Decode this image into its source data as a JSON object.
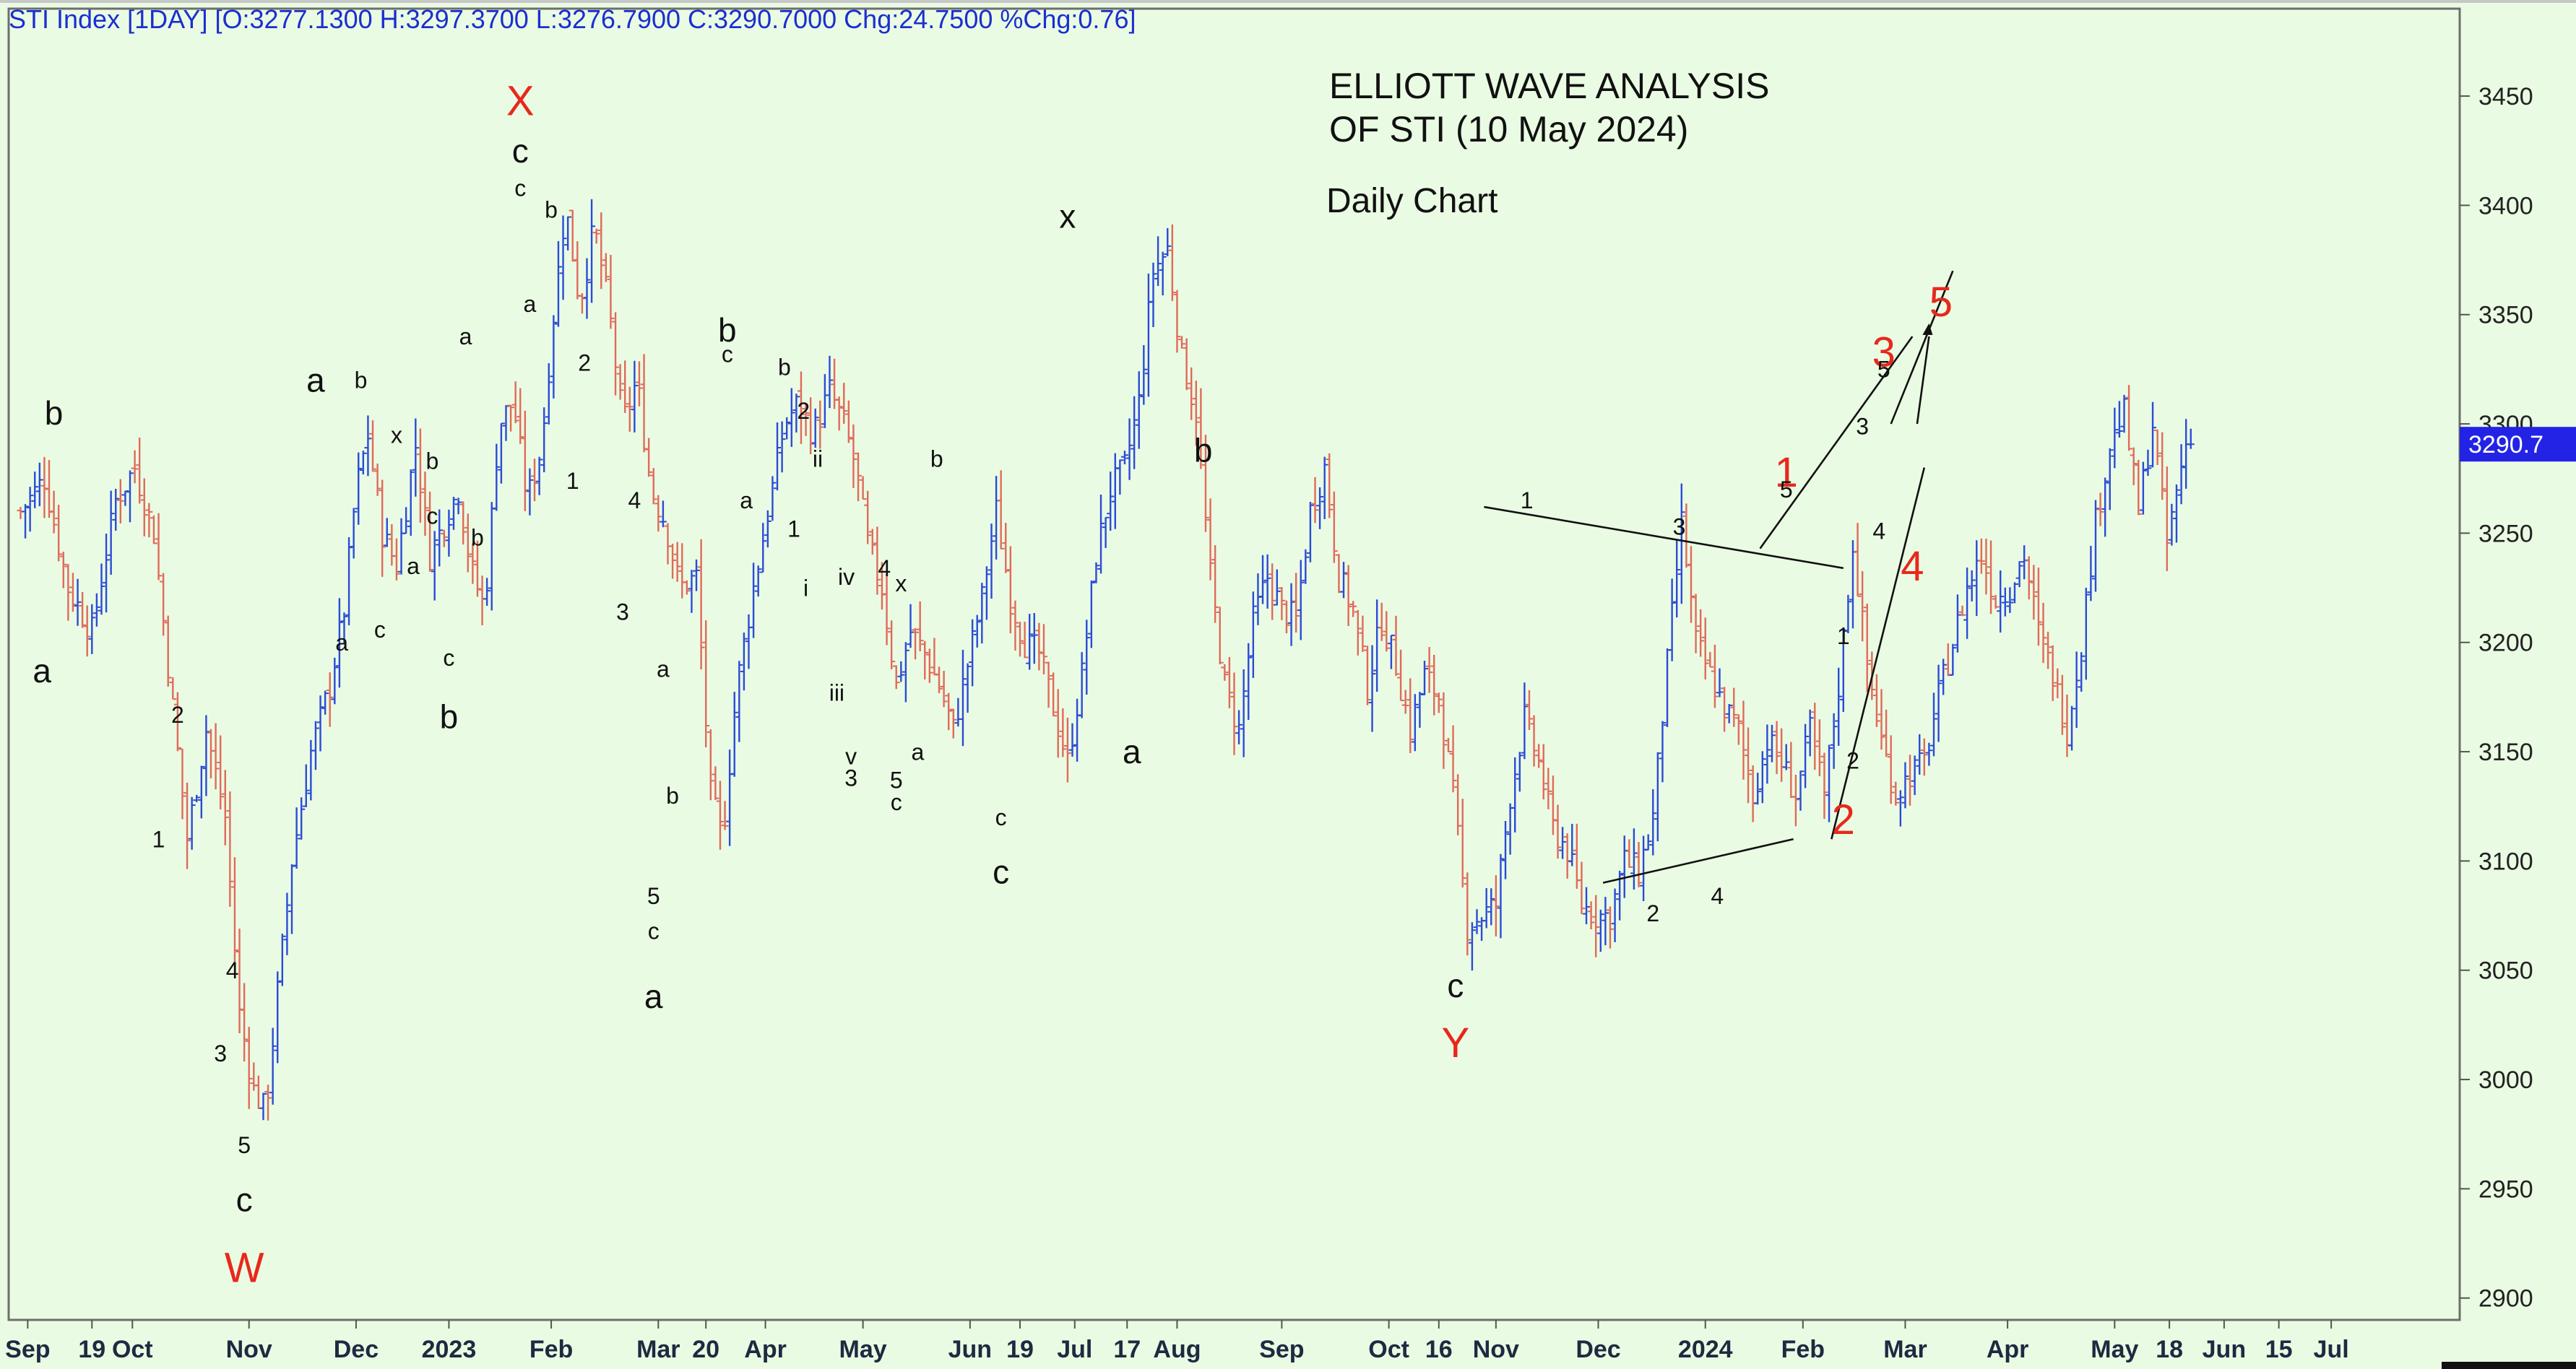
{
  "chart_data": {
    "type": "ohlc",
    "header": "STI Index [1DAY] [O:3277.1300 H:3297.3700 L:3276.7900 C:3290.7000 Chg:24.7500 %Chg:0.76]",
    "title": "ELLIOTT WAVE ANALYSIS",
    "title2": "OF STI (10 May 2024)",
    "subtitle": "Daily Chart",
    "last_price_label": "3290.7",
    "last_price": 3290.7,
    "ylim": [
      2890,
      3490
    ],
    "y_ticks": [
      2900,
      2950,
      3000,
      3050,
      3100,
      3150,
      3200,
      3250,
      3300,
      3350,
      3400,
      3450
    ],
    "x_labels": [
      {
        "t": 0.3,
        "text": "Sep"
      },
      {
        "t": 3.0,
        "text": "19"
      },
      {
        "t": 4.7,
        "text": "Oct"
      },
      {
        "t": 9.6,
        "text": "Nov"
      },
      {
        "t": 14.1,
        "text": "Dec"
      },
      {
        "t": 18.0,
        "text": "2023"
      },
      {
        "t": 22.3,
        "text": "Feb"
      },
      {
        "t": 26.8,
        "text": "Mar"
      },
      {
        "t": 28.8,
        "text": "20"
      },
      {
        "t": 31.3,
        "text": "Apr"
      },
      {
        "t": 35.4,
        "text": "May"
      },
      {
        "t": 39.9,
        "text": "Jun"
      },
      {
        "t": 42.0,
        "text": "19"
      },
      {
        "t": 44.3,
        "text": "Jul"
      },
      {
        "t": 46.5,
        "text": "17"
      },
      {
        "t": 48.6,
        "text": "Aug"
      },
      {
        "t": 53.0,
        "text": "Sep"
      },
      {
        "t": 57.5,
        "text": "Oct"
      },
      {
        "t": 59.6,
        "text": "16"
      },
      {
        "t": 62.0,
        "text": "Nov"
      },
      {
        "t": 66.3,
        "text": "Dec"
      },
      {
        "t": 70.8,
        "text": "2024"
      },
      {
        "t": 74.9,
        "text": "Feb"
      },
      {
        "t": 79.2,
        "text": "Mar"
      },
      {
        "t": 83.5,
        "text": "Apr"
      },
      {
        "t": 88.0,
        "text": "May"
      },
      {
        "t": 90.3,
        "text": "18"
      },
      {
        "t": 92.6,
        "text": "Jun"
      },
      {
        "t": 94.9,
        "text": "15"
      },
      {
        "t": 97.1,
        "text": "Jul"
      }
    ],
    "t_range": [
      -0.5,
      102.5
    ],
    "price_path": [
      [
        0,
        3260
      ],
      [
        1,
        3275
      ],
      [
        2,
        3225
      ],
      [
        3,
        3205
      ],
      [
        4,
        3265
      ],
      [
        4.8,
        3280
      ],
      [
        5.6,
        3250
      ],
      [
        6.3,
        3180
      ],
      [
        7.0,
        3110
      ],
      [
        7.8,
        3160
      ],
      [
        8.6,
        3120
      ],
      [
        9.2,
        3030
      ],
      [
        9.8,
        2995
      ],
      [
        10.3,
        2985
      ],
      [
        10.8,
        3040
      ],
      [
        11.4,
        3100
      ],
      [
        12.2,
        3150
      ],
      [
        13.0,
        3180
      ],
      [
        13.6,
        3215
      ],
      [
        14.1,
        3270
      ],
      [
        14.6,
        3295
      ],
      [
        15.2,
        3250
      ],
      [
        15.8,
        3235
      ],
      [
        16.6,
        3290
      ],
      [
        17.2,
        3240
      ],
      [
        17.8,
        3255
      ],
      [
        18.4,
        3270
      ],
      [
        18.9,
        3235
      ],
      [
        19.5,
        3215
      ],
      [
        20.1,
        3300
      ],
      [
        20.7,
        3310
      ],
      [
        21.3,
        3265
      ],
      [
        21.9,
        3290
      ],
      [
        22.4,
        3350
      ],
      [
        22.9,
        3400
      ],
      [
        23.5,
        3355
      ],
      [
        24.1,
        3390
      ],
      [
        24.7,
        3355
      ],
      [
        25.3,
        3300
      ],
      [
        25.9,
        3320
      ],
      [
        26.5,
        3270
      ],
      [
        27.1,
        3255
      ],
      [
        27.7,
        3225
      ],
      [
        28.4,
        3230
      ],
      [
        29.0,
        3130
      ],
      [
        29.5,
        3110
      ],
      [
        30.1,
        3180
      ],
      [
        30.8,
        3225
      ],
      [
        31.5,
        3265
      ],
      [
        32.1,
        3300
      ],
      [
        32.7,
        3310
      ],
      [
        33.3,
        3295
      ],
      [
        34.0,
        3315
      ],
      [
        34.6,
        3300
      ],
      [
        35.1,
        3280
      ],
      [
        35.6,
        3245
      ],
      [
        36.2,
        3225
      ],
      [
        36.8,
        3180
      ],
      [
        37.4,
        3205
      ],
      [
        38.0,
        3195
      ],
      [
        38.6,
        3180
      ],
      [
        39.2,
        3160
      ],
      [
        39.8,
        3190
      ],
      [
        40.4,
        3220
      ],
      [
        41.0,
        3260
      ],
      [
        41.6,
        3220
      ],
      [
        42.2,
        3200
      ],
      [
        42.8,
        3195
      ],
      [
        43.4,
        3170
      ],
      [
        44.0,
        3145
      ],
      [
        44.6,
        3185
      ],
      [
        45.2,
        3240
      ],
      [
        45.8,
        3270
      ],
      [
        46.4,
        3280
      ],
      [
        47.0,
        3310
      ],
      [
        47.6,
        3370
      ],
      [
        48.2,
        3380
      ],
      [
        48.8,
        3330
      ],
      [
        49.4,
        3305
      ],
      [
        50.0,
        3230
      ],
      [
        50.6,
        3180
      ],
      [
        51.2,
        3160
      ],
      [
        51.8,
        3210
      ],
      [
        52.4,
        3230
      ],
      [
        53.0,
        3215
      ],
      [
        53.6,
        3210
      ],
      [
        54.2,
        3260
      ],
      [
        54.8,
        3280
      ],
      [
        55.4,
        3230
      ],
      [
        56.0,
        3215
      ],
      [
        56.6,
        3180
      ],
      [
        57.2,
        3210
      ],
      [
        57.8,
        3190
      ],
      [
        58.4,
        3160
      ],
      [
        59.0,
        3185
      ],
      [
        59.6,
        3175
      ],
      [
        60.2,
        3130
      ],
      [
        60.8,
        3070
      ],
      [
        61.4,
        3075
      ],
      [
        62.0,
        3080
      ],
      [
        62.6,
        3130
      ],
      [
        63.2,
        3165
      ],
      [
        63.8,
        3145
      ],
      [
        64.4,
        3115
      ],
      [
        65.0,
        3105
      ],
      [
        65.6,
        3080
      ],
      [
        66.2,
        3075
      ],
      [
        66.8,
        3075
      ],
      [
        67.4,
        3100
      ],
      [
        68.0,
        3095
      ],
      [
        68.6,
        3120
      ],
      [
        69.2,
        3190
      ],
      [
        69.8,
        3255
      ],
      [
        70.4,
        3200
      ],
      [
        71.0,
        3185
      ],
      [
        71.6,
        3170
      ],
      [
        72.2,
        3160
      ],
      [
        72.8,
        3130
      ],
      [
        73.4,
        3155
      ],
      [
        74.0,
        3145
      ],
      [
        74.6,
        3130
      ],
      [
        75.2,
        3160
      ],
      [
        75.8,
        3130
      ],
      [
        76.4,
        3180
      ],
      [
        77.0,
        3245
      ],
      [
        77.6,
        3190
      ],
      [
        78.2,
        3155
      ],
      [
        78.8,
        3130
      ],
      [
        79.4,
        3140
      ],
      [
        80.0,
        3145
      ],
      [
        80.6,
        3175
      ],
      [
        81.2,
        3200
      ],
      [
        81.8,
        3225
      ],
      [
        82.4,
        3240
      ],
      [
        83.0,
        3220
      ],
      [
        83.6,
        3225
      ],
      [
        84.2,
        3240
      ],
      [
        84.8,
        3205
      ],
      [
        85.4,
        3185
      ],
      [
        86.0,
        3160
      ],
      [
        86.6,
        3200
      ],
      [
        87.2,
        3255
      ],
      [
        87.8,
        3290
      ],
      [
        88.4,
        3305
      ],
      [
        89.0,
        3260
      ],
      [
        89.6,
        3300
      ],
      [
        90.2,
        3245
      ],
      [
        90.8,
        3280
      ],
      [
        91.2,
        3290.7
      ]
    ],
    "wave_labels": [
      {
        "t": 0.9,
        "y": 3187,
        "text": "a",
        "color": "black",
        "size": "L"
      },
      {
        "t": 1.4,
        "y": 3305,
        "text": "b",
        "color": "black",
        "size": "L"
      },
      {
        "t": 6.6,
        "y": 3167,
        "text": "2",
        "color": "black",
        "size": "S"
      },
      {
        "t": 5.8,
        "y": 3110,
        "text": "1",
        "color": "black",
        "size": "S"
      },
      {
        "t": 8.9,
        "y": 3050,
        "text": "4",
        "color": "black",
        "size": "S"
      },
      {
        "t": 8.4,
        "y": 3012,
        "text": "3",
        "color": "black",
        "size": "S"
      },
      {
        "t": 9.4,
        "y": 2970,
        "text": "5",
        "color": "black",
        "size": "S"
      },
      {
        "t": 9.4,
        "y": 2945,
        "text": "c",
        "color": "black",
        "size": "L"
      },
      {
        "t": 9.4,
        "y": 2914,
        "text": "W",
        "color": "red",
        "size": "L"
      },
      {
        "t": 12.4,
        "y": 3320,
        "text": "a",
        "color": "black",
        "size": "L"
      },
      {
        "t": 14.3,
        "y": 3320,
        "text": "b",
        "color": "black",
        "size": "S"
      },
      {
        "t": 13.5,
        "y": 3200,
        "text": "a",
        "color": "black",
        "size": "S"
      },
      {
        "t": 15.1,
        "y": 3206,
        "text": "c",
        "color": "black",
        "size": "S"
      },
      {
        "t": 15.8,
        "y": 3295,
        "text": "x",
        "color": "black",
        "size": "S"
      },
      {
        "t": 16.5,
        "y": 3235,
        "text": "a",
        "color": "black",
        "size": "S"
      },
      {
        "t": 17.3,
        "y": 3258,
        "text": "c",
        "color": "black",
        "size": "S"
      },
      {
        "t": 17.3,
        "y": 3283,
        "text": "b",
        "color": "black",
        "size": "S"
      },
      {
        "t": 19.2,
        "y": 3248,
        "text": "b",
        "color": "black",
        "size": "S"
      },
      {
        "t": 18.0,
        "y": 3193,
        "text": "c",
        "color": "black",
        "size": "S"
      },
      {
        "t": 18.0,
        "y": 3166,
        "text": "b",
        "color": "black",
        "size": "L"
      },
      {
        "t": 18.7,
        "y": 3340,
        "text": "a",
        "color": "black",
        "size": "S"
      },
      {
        "t": 21.0,
        "y": 3448,
        "text": "X",
        "color": "red",
        "size": "L"
      },
      {
        "t": 21.0,
        "y": 3425,
        "text": "c",
        "color": "black",
        "size": "L"
      },
      {
        "t": 21.0,
        "y": 3408,
        "text": "c",
        "color": "black",
        "size": "S"
      },
      {
        "t": 22.3,
        "y": 3398,
        "text": "b",
        "color": "black",
        "size": "S"
      },
      {
        "t": 21.4,
        "y": 3355,
        "text": "a",
        "color": "black",
        "size": "S"
      },
      {
        "t": 23.7,
        "y": 3328,
        "text": "2",
        "color": "black",
        "size": "S"
      },
      {
        "t": 23.2,
        "y": 3274,
        "text": "1",
        "color": "black",
        "size": "S"
      },
      {
        "t": 25.8,
        "y": 3265,
        "text": "4",
        "color": "black",
        "size": "S"
      },
      {
        "t": 25.3,
        "y": 3214,
        "text": "3",
        "color": "black",
        "size": "S"
      },
      {
        "t": 27.0,
        "y": 3188,
        "text": "a",
        "color": "black",
        "size": "S"
      },
      {
        "t": 27.4,
        "y": 3130,
        "text": "b",
        "color": "black",
        "size": "S"
      },
      {
        "t": 26.6,
        "y": 3084,
        "text": "5",
        "color": "black",
        "size": "S"
      },
      {
        "t": 26.6,
        "y": 3068,
        "text": "c",
        "color": "black",
        "size": "S"
      },
      {
        "t": 26.6,
        "y": 3038,
        "text": "a",
        "color": "black",
        "size": "L"
      },
      {
        "t": 29.7,
        "y": 3343,
        "text": "b",
        "color": "black",
        "size": "L"
      },
      {
        "t": 29.7,
        "y": 3332,
        "text": "c",
        "color": "black",
        "size": "S"
      },
      {
        "t": 32.1,
        "y": 3326,
        "text": "b",
        "color": "black",
        "size": "S"
      },
      {
        "t": 30.5,
        "y": 3265,
        "text": "a",
        "color": "black",
        "size": "S"
      },
      {
        "t": 32.9,
        "y": 3306,
        "text": "2",
        "color": "black",
        "size": "S"
      },
      {
        "t": 33.5,
        "y": 3284,
        "text": "ii",
        "color": "black",
        "size": "S"
      },
      {
        "t": 32.5,
        "y": 3252,
        "text": "1",
        "color": "black",
        "size": "S"
      },
      {
        "t": 33.0,
        "y": 3225,
        "text": "i",
        "color": "black",
        "size": "S"
      },
      {
        "t": 34.7,
        "y": 3230,
        "text": "iv",
        "color": "black",
        "size": "S"
      },
      {
        "t": 36.3,
        "y": 3234,
        "text": "4",
        "color": "black",
        "size": "S"
      },
      {
        "t": 37.0,
        "y": 3227,
        "text": "x",
        "color": "black",
        "size": "S"
      },
      {
        "t": 34.3,
        "y": 3177,
        "text": "iii",
        "color": "black",
        "size": "S"
      },
      {
        "t": 34.9,
        "y": 3148,
        "text": "v",
        "color": "black",
        "size": "S"
      },
      {
        "t": 34.9,
        "y": 3138,
        "text": "3",
        "color": "black",
        "size": "S"
      },
      {
        "t": 38.5,
        "y": 3284,
        "text": "b",
        "color": "black",
        "size": "S"
      },
      {
        "t": 37.7,
        "y": 3150,
        "text": "a",
        "color": "black",
        "size": "S"
      },
      {
        "t": 36.8,
        "y": 3137,
        "text": "5",
        "color": "black",
        "size": "S"
      },
      {
        "t": 36.8,
        "y": 3127,
        "text": "c",
        "color": "black",
        "size": "S"
      },
      {
        "t": 41.2,
        "y": 3120,
        "text": "c",
        "color": "black",
        "size": "S"
      },
      {
        "t": 41.2,
        "y": 3095,
        "text": "c",
        "color": "black",
        "size": "L"
      },
      {
        "t": 44.0,
        "y": 3395,
        "text": "x",
        "color": "black",
        "size": "L"
      },
      {
        "t": 46.7,
        "y": 3150,
        "text": "a",
        "color": "black",
        "size": "L"
      },
      {
        "t": 49.7,
        "y": 3288,
        "text": "b",
        "color": "black",
        "size": "L"
      },
      {
        "t": 60.3,
        "y": 3043,
        "text": "c",
        "color": "black",
        "size": "L"
      },
      {
        "t": 60.3,
        "y": 3017,
        "text": "Y",
        "color": "red",
        "size": "L"
      },
      {
        "t": 63.3,
        "y": 3265,
        "text": "1",
        "color": "black",
        "size": "S"
      },
      {
        "t": 69.7,
        "y": 3253,
        "text": "3",
        "color": "black",
        "size": "S"
      },
      {
        "t": 68.6,
        "y": 3076,
        "text": "2",
        "color": "black",
        "size": "S"
      },
      {
        "t": 71.3,
        "y": 3084,
        "text": "4",
        "color": "black",
        "size": "S"
      },
      {
        "t": 74.2,
        "y": 3278,
        "text": "1",
        "color": "red",
        "size": "L"
      },
      {
        "t": 74.2,
        "y": 3270,
        "text": "5",
        "color": "black",
        "size": "S"
      },
      {
        "t": 76.6,
        "y": 3203,
        "text": "1",
        "color": "black",
        "size": "S"
      },
      {
        "t": 77.0,
        "y": 3146,
        "text": "2",
        "color": "black",
        "size": "S"
      },
      {
        "t": 76.6,
        "y": 3119,
        "text": "2",
        "color": "red",
        "size": "L"
      },
      {
        "t": 77.4,
        "y": 3299,
        "text": "3",
        "color": "black",
        "size": "S"
      },
      {
        "t": 78.3,
        "y": 3333,
        "text": "3",
        "color": "red",
        "size": "L"
      },
      {
        "t": 78.3,
        "y": 3325,
        "text": "5",
        "color": "black",
        "size": "S"
      },
      {
        "t": 78.1,
        "y": 3251,
        "text": "4",
        "color": "black",
        "size": "S"
      },
      {
        "t": 79.5,
        "y": 3235,
        "text": "4",
        "color": "red",
        "size": "L"
      },
      {
        "t": 80.7,
        "y": 3356,
        "text": "5",
        "color": "red",
        "size": "L"
      }
    ]
  }
}
